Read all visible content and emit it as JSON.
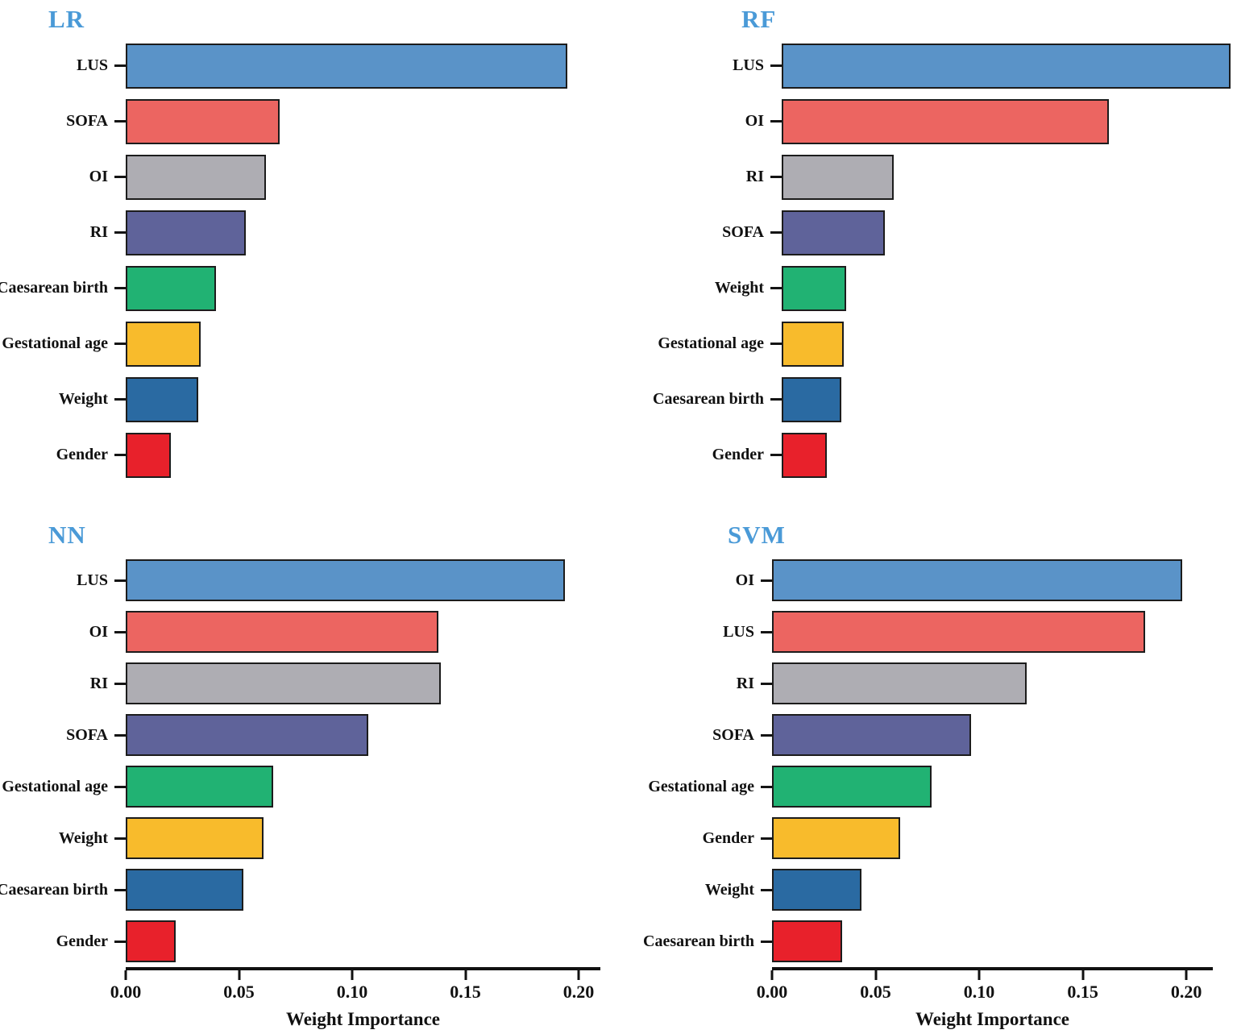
{
  "figure": {
    "title_color": "#4a9ad7",
    "bar_border_color": "#1c1c1c",
    "palette": [
      "#5a93c8",
      "#ec6561",
      "#aeadb3",
      "#5f639a",
      "#21b273",
      "#f8bb2c",
      "#2a6aa2",
      "#e8212b"
    ],
    "x_axis": {
      "label": "Weight Importance",
      "tick_labels": [
        "0.00",
        "0.05",
        "0.10",
        "0.15",
        "0.20"
      ],
      "tick_values": [
        0.0,
        0.05,
        0.1,
        0.15,
        0.2
      ]
    }
  },
  "chart_data": [
    {
      "type": "bar",
      "orientation": "horizontal",
      "title": "LR",
      "categories": [
        "LUS",
        "SOFA",
        "OI",
        "RI",
        "Caesarean birth",
        "Gestational age",
        "Weight",
        "Gender"
      ],
      "values": [
        0.195,
        0.068,
        0.062,
        0.053,
        0.04,
        0.033,
        0.032,
        0.02
      ],
      "xlabel": "",
      "xlim": [
        0,
        0.2096
      ],
      "axis_visible": false,
      "grid": false,
      "legend": "none"
    },
    {
      "type": "bar",
      "orientation": "horizontal",
      "title": "RF",
      "categories": [
        "LUS",
        "OI",
        "RI",
        "SOFA",
        "Weight",
        "Gestational age",
        "Caesarean birth",
        "Gender"
      ],
      "values": [
        0.217,
        0.158,
        0.054,
        0.05,
        0.031,
        0.03,
        0.029,
        0.022
      ],
      "xlabel": "",
      "xlim": [
        0,
        0.217
      ],
      "axis_visible": false,
      "grid": false,
      "legend": "none"
    },
    {
      "type": "bar",
      "orientation": "horizontal",
      "title": "NN",
      "categories": [
        "LUS",
        "OI",
        "RI",
        "SOFA",
        "Gestational age",
        "Weight",
        "Caesarean birth",
        "Gender"
      ],
      "values": [
        0.194,
        0.138,
        0.139,
        0.107,
        0.065,
        0.061,
        0.052,
        0.022
      ],
      "xlabel": "Weight Importance",
      "xlim": [
        0,
        0.2096
      ],
      "axis_visible": true,
      "grid": false,
      "legend": "none"
    },
    {
      "type": "bar",
      "orientation": "horizontal",
      "title": "SVM",
      "categories": [
        "OI",
        "LUS",
        "RI",
        "SOFA",
        "Gestational age",
        "Gender",
        "Weight",
        "Caesarean birth"
      ],
      "values": [
        0.198,
        0.18,
        0.123,
        0.096,
        0.077,
        0.062,
        0.043,
        0.034
      ],
      "xlabel": "Weight Importance",
      "xlim": [
        0,
        0.2128
      ],
      "axis_visible": true,
      "grid": false,
      "legend": "none"
    }
  ]
}
